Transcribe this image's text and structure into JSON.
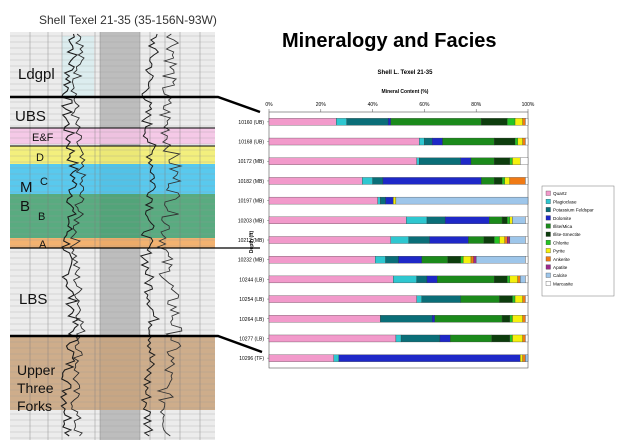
{
  "log_panel": {
    "header": "Shell Texel 21-35 (35-156N-93W)",
    "units": [
      {
        "label": "Ldgpl",
        "color": ""
      },
      {
        "label": "UBS",
        "color": ""
      },
      {
        "label": "E&F",
        "color": "#f7c3e6"
      },
      {
        "label": "D",
        "color": "#f5f06a"
      },
      {
        "label": "M",
        "color": ""
      },
      {
        "label": "C",
        "color": "#3fc3ee"
      },
      {
        "label": "B",
        "color": ""
      },
      {
        "label": "B",
        "color": "#3fa06d"
      },
      {
        "label": "A",
        "color": "#f5a85a"
      },
      {
        "label": "LBS",
        "color": ""
      },
      {
        "label": "Upper",
        "color": ""
      },
      {
        "label": "Three",
        "color": ""
      },
      {
        "label": "Forks",
        "color": "#c9a27a"
      }
    ]
  },
  "main_title": "Mineralogy and Facies",
  "chart_data": {
    "type": "bar",
    "orientation": "horizontal-stacked-100",
    "title": "Shell L. Texel 21-35",
    "xlabel": "Mineral Content (%)",
    "ylabel": "Depth (ft)",
    "xlim": [
      0,
      100
    ],
    "xticks": [
      "0%",
      "20%",
      "40%",
      "60%",
      "80%",
      "100%"
    ],
    "categories": [
      "10160 (UB)",
      "10168 (UB)",
      "10172 (MB)",
      "10182 (MB)",
      "10197 (MB)",
      "10203 (MB)",
      "10212 (MB)",
      "10232 (MB)",
      "10244 (LB)",
      "10254 (LB)",
      "10264 (LB)",
      "10277 (LB)",
      "10296 (TF)"
    ],
    "legend_position": "right",
    "series": [
      {
        "name": "Quartz",
        "color": "#f29acb",
        "values": [
          26,
          58,
          57,
          36,
          42,
          53,
          47,
          41,
          48,
          57,
          43,
          49,
          25
        ]
      },
      {
        "name": "Plagioclase",
        "color": "#2ec7d0",
        "values": [
          4,
          2,
          1,
          4,
          1,
          8,
          7,
          4,
          9,
          2,
          0,
          2,
          2
        ]
      },
      {
        "name": "Potassium Feldspar",
        "color": "#0a6e78",
        "values": [
          16,
          3,
          16,
          4,
          2,
          7,
          8,
          5,
          4,
          15,
          20,
          15,
          0
        ]
      },
      {
        "name": "Dolomite",
        "color": "#1e28c8",
        "values": [
          1,
          4,
          4,
          38,
          3,
          17,
          15,
          9,
          4,
          0,
          1,
          4,
          70
        ]
      },
      {
        "name": "Illite/Mica",
        "color": "#1b8a1b",
        "values": [
          35,
          20,
          9,
          5,
          0,
          5,
          6,
          10,
          22,
          15,
          26,
          16,
          0
        ]
      },
      {
        "name": "Illite-Smectite",
        "color": "#0d3d0d",
        "values": [
          10,
          8,
          6,
          3,
          0,
          2,
          4,
          5,
          5,
          5,
          3,
          7,
          0
        ]
      },
      {
        "name": "Chlorite",
        "color": "#23c423",
        "values": [
          3,
          1,
          1,
          1,
          0,
          1,
          2,
          1,
          1,
          1,
          1,
          1,
          0
        ]
      },
      {
        "name": "Pyrite",
        "color": "#f4f00e",
        "values": [
          3,
          2,
          3,
          2,
          1,
          1,
          2,
          3,
          3,
          3,
          4,
          4,
          1
        ]
      },
      {
        "name": "Ankerite",
        "color": "#f07a14",
        "values": [
          1,
          1,
          0,
          6,
          0,
          0,
          1,
          1,
          1,
          1,
          1,
          1,
          1
        ]
      },
      {
        "name": "Apatite",
        "color": "#9b2a8c",
        "values": [
          0,
          0,
          0,
          0,
          0,
          0,
          1,
          1,
          0,
          0,
          0,
          0,
          0
        ]
      },
      {
        "name": "Calcite",
        "color": "#9ec6ea",
        "values": [
          0,
          0,
          0,
          0,
          51,
          5,
          6,
          19,
          2,
          0,
          0,
          0,
          1
        ]
      },
      {
        "name": "Marcasite",
        "color": "#ffffff",
        "values": [
          1,
          1,
          3,
          1,
          0,
          1,
          1,
          1,
          1,
          1,
          1,
          1,
          0
        ]
      }
    ]
  }
}
